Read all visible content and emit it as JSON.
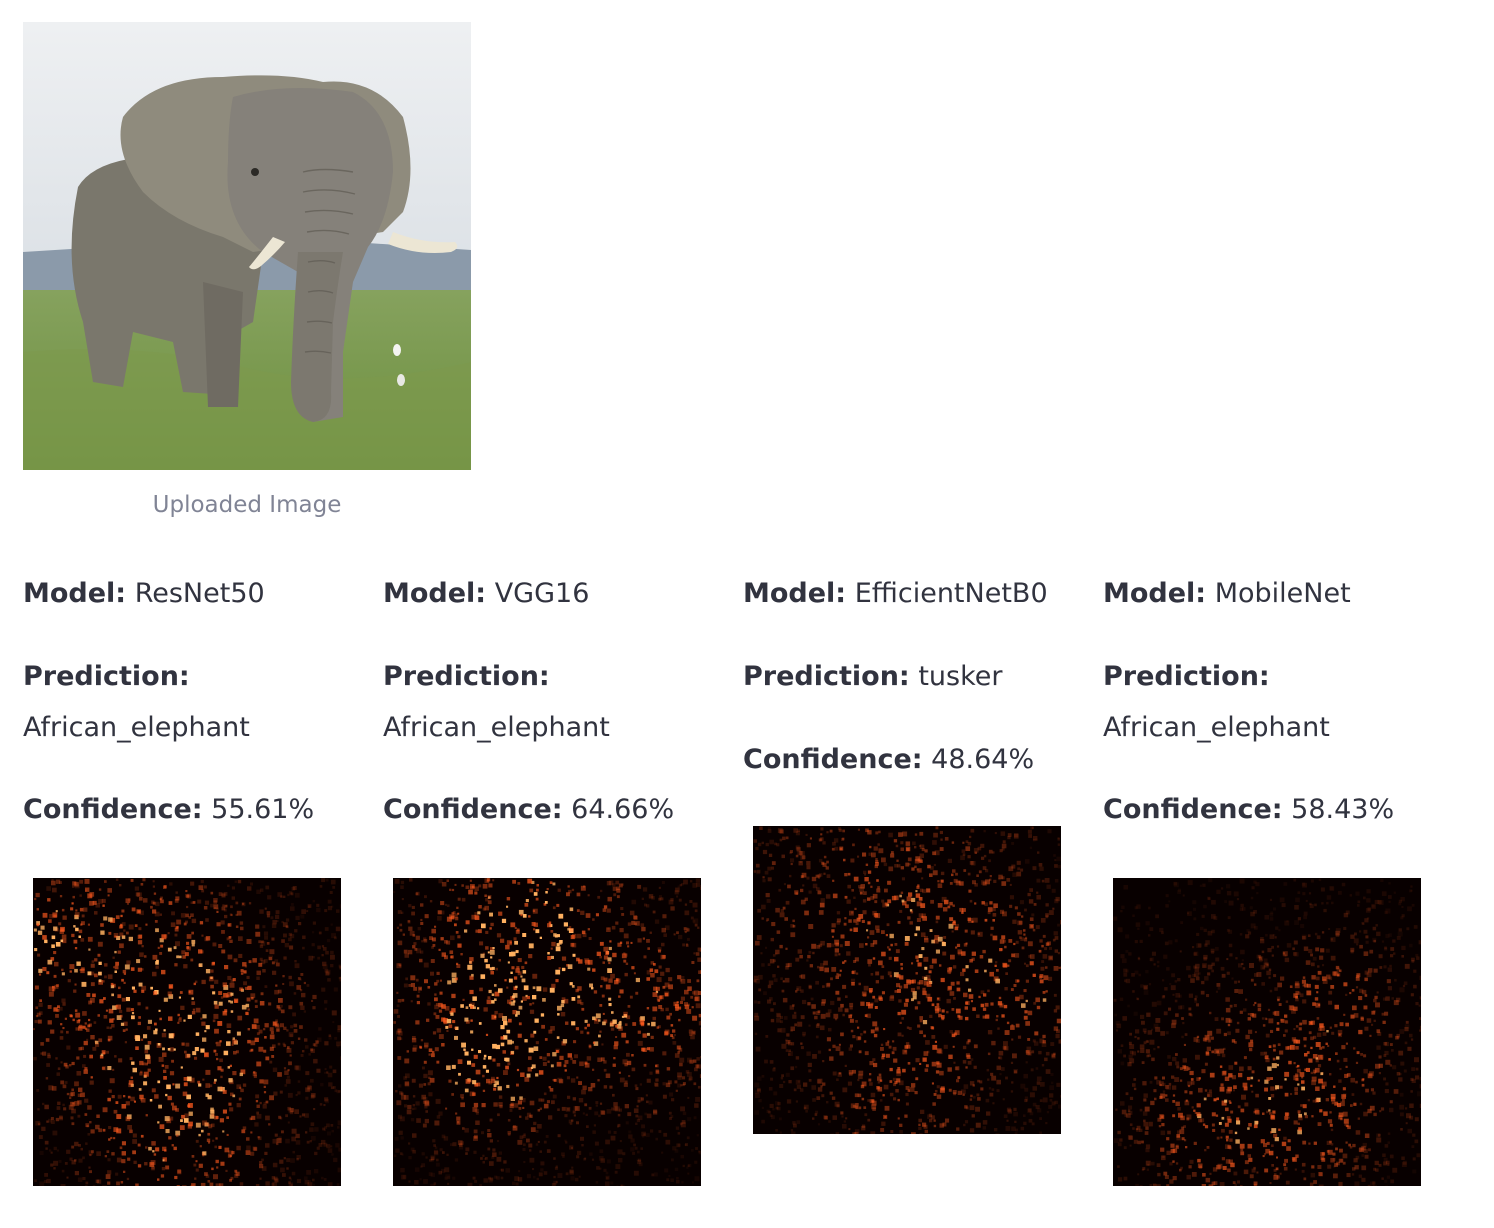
{
  "uploaded": {
    "caption": "Uploaded Image",
    "image_icon": "elephant-photo"
  },
  "labels": {
    "model": "Model:",
    "prediction": "Prediction:",
    "confidence": "Confidence:"
  },
  "results": [
    {
      "model": "ResNet50",
      "prediction": "African_elephant",
      "confidence": "55.61%"
    },
    {
      "model": "VGG16",
      "prediction": "African_elephant",
      "confidence": "64.66%"
    },
    {
      "model": "EfficientNetB0",
      "prediction": "tusker",
      "confidence": "48.64%"
    },
    {
      "model": "MobileNet",
      "prediction": "African_elephant",
      "confidence": "58.43%"
    }
  ],
  "colors": {
    "heat_bg": "#080000",
    "heat_hot": "#ff5a1e",
    "text": "#31333f",
    "caption": "#808495"
  }
}
